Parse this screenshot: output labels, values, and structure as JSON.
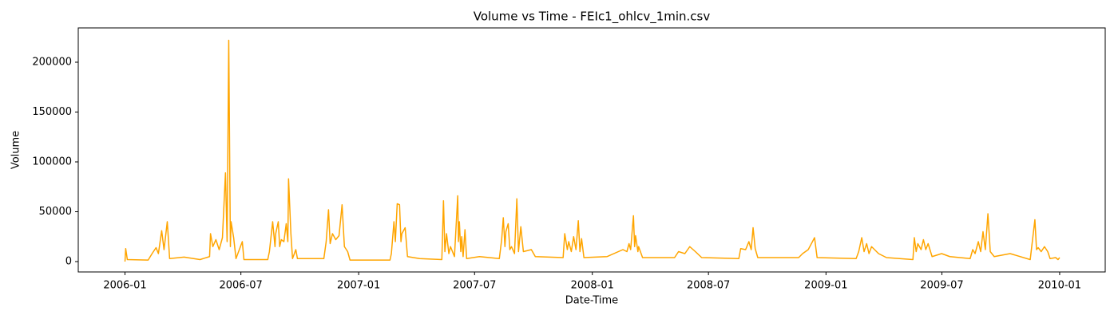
{
  "chart_data": {
    "type": "line",
    "title": "Volume vs Time - FEIc1_ohlcv_1min.csv",
    "x_label": "Date-Time",
    "y_label": "Volume",
    "color": "#ffa500",
    "grid": false,
    "xlim": [
      2005.8,
      2010.195
    ],
    "ylim": [
      -10400,
      234400
    ],
    "xticks": [
      {
        "value": 2006.0,
        "label": "2006-01"
      },
      {
        "value": 2006.496,
        "label": "2006-07"
      },
      {
        "value": 2007.0,
        "label": "2007-01"
      },
      {
        "value": 2007.496,
        "label": "2007-07"
      },
      {
        "value": 2008.0,
        "label": "2008-01"
      },
      {
        "value": 2008.497,
        "label": "2008-07"
      },
      {
        "value": 2009.0,
        "label": "2009-01"
      },
      {
        "value": 2009.496,
        "label": "2009-07"
      },
      {
        "value": 2010.0,
        "label": "2010-01"
      }
    ],
    "yticks": [
      0,
      50000,
      100000,
      150000,
      200000
    ],
    "x": [
      2006.0,
      2006.003,
      2006.01,
      2006.099,
      2006.116,
      2006.133,
      2006.143,
      2006.157,
      2006.167,
      2006.181,
      2006.191,
      2006.253,
      2006.321,
      2006.362,
      2006.366,
      2006.376,
      2006.389,
      2006.403,
      2006.417,
      2006.43,
      2006.437,
      2006.444,
      2006.451,
      2006.454,
      2006.465,
      2006.475,
      2006.502,
      2006.509,
      2006.611,
      2006.618,
      2006.632,
      2006.642,
      2006.645,
      2006.656,
      2006.662,
      2006.669,
      2006.68,
      2006.69,
      2006.697,
      2006.7,
      2006.71,
      2006.717,
      2006.731,
      2006.738,
      2006.851,
      2006.861,
      2006.871,
      2006.878,
      2006.888,
      2006.902,
      2006.916,
      2006.929,
      2006.939,
      2006.953,
      2006.963,
      2007.134,
      2007.14,
      2007.151,
      2007.157,
      2007.165,
      2007.175,
      2007.181,
      2007.185,
      2007.199,
      2007.209,
      2007.261,
      2007.356,
      2007.363,
      2007.369,
      2007.376,
      2007.386,
      2007.393,
      2007.41,
      2007.424,
      2007.427,
      2007.431,
      2007.437,
      2007.441,
      2007.447,
      2007.455,
      2007.462,
      2007.517,
      2007.602,
      2007.612,
      2007.619,
      2007.626,
      2007.63,
      2007.64,
      2007.647,
      2007.654,
      2007.667,
      2007.677,
      2007.684,
      2007.694,
      2007.705,
      2007.739,
      2007.756,
      2007.875,
      2007.882,
      2007.893,
      2007.899,
      2007.91,
      2007.92,
      2007.93,
      2007.94,
      2007.947,
      2007.954,
      2007.964,
      2008.063,
      2008.131,
      2008.148,
      2008.157,
      2008.164,
      2008.176,
      2008.181,
      2008.185,
      2008.195,
      2008.198,
      2008.215,
      2008.352,
      2008.369,
      2008.396,
      2008.417,
      2008.441,
      2008.468,
      2008.627,
      2008.635,
      2008.656,
      2008.67,
      2008.68,
      2008.688,
      2008.697,
      2008.708,
      2008.883,
      2008.9,
      2008.924,
      2008.951,
      2008.962,
      2009.129,
      2009.14,
      2009.153,
      2009.163,
      2009.174,
      2009.184,
      2009.195,
      2009.225,
      2009.259,
      2009.372,
      2009.378,
      2009.386,
      2009.393,
      2009.407,
      2009.417,
      2009.427,
      2009.437,
      2009.454,
      2009.495,
      2009.53,
      2009.617,
      2009.628,
      2009.638,
      2009.652,
      2009.662,
      2009.672,
      2009.682,
      2009.693,
      2009.703,
      2009.72,
      2009.788,
      2009.874,
      2009.884,
      2009.894,
      2009.901,
      2009.908,
      2009.921,
      2009.935,
      2009.949,
      2009.959,
      2009.983,
      2009.993,
      2010.0
    ],
    "values": [
      0,
      13000,
      2000,
      1500,
      8000,
      14000,
      8000,
      31000,
      12000,
      40000,
      3000,
      4500,
      2000,
      5000,
      28000,
      15000,
      22000,
      12000,
      24000,
      89000,
      20000,
      222000,
      15000,
      40000,
      24000,
      3000,
      20000,
      2000,
      2000,
      10000,
      40000,
      15000,
      28000,
      40000,
      15000,
      22000,
      20000,
      38000,
      20000,
      83000,
      28000,
      3000,
      12000,
      3000,
      3000,
      20000,
      52000,
      18000,
      28000,
      22000,
      26000,
      57000,
      15000,
      10000,
      1500,
      1500,
      8000,
      40000,
      20000,
      58000,
      57000,
      20000,
      28000,
      34000,
      5000,
      3000,
      2000,
      61000,
      10000,
      28000,
      8000,
      15000,
      5000,
      66000,
      20000,
      40000,
      10000,
      25000,
      5000,
      32000,
      3000,
      5000,
      3000,
      22000,
      44000,
      15000,
      30000,
      38000,
      12000,
      15000,
      8000,
      63000,
      10000,
      35000,
      10000,
      12000,
      5000,
      4000,
      28000,
      12000,
      20000,
      10000,
      25000,
      12000,
      41000,
      10000,
      23000,
      4000,
      5000,
      12000,
      10000,
      18000,
      12000,
      46000,
      15000,
      26000,
      10000,
      15000,
      4000,
      4000,
      10000,
      8000,
      15000,
      10000,
      4000,
      3000,
      13000,
      12000,
      20000,
      12000,
      34000,
      13000,
      4000,
      4000,
      8000,
      12000,
      24000,
      4000,
      3000,
      10000,
      24000,
      10000,
      18000,
      8000,
      15000,
      8000,
      4000,
      2000,
      24000,
      10000,
      18000,
      12000,
      22000,
      12000,
      18000,
      5000,
      8000,
      5000,
      3000,
      12000,
      8000,
      20000,
      10000,
      30000,
      12000,
      48000,
      10000,
      5000,
      8000,
      2000,
      22000,
      42000,
      12000,
      14000,
      10000,
      15000,
      10000,
      3000,
      4000,
      2000,
      4000
    ]
  }
}
